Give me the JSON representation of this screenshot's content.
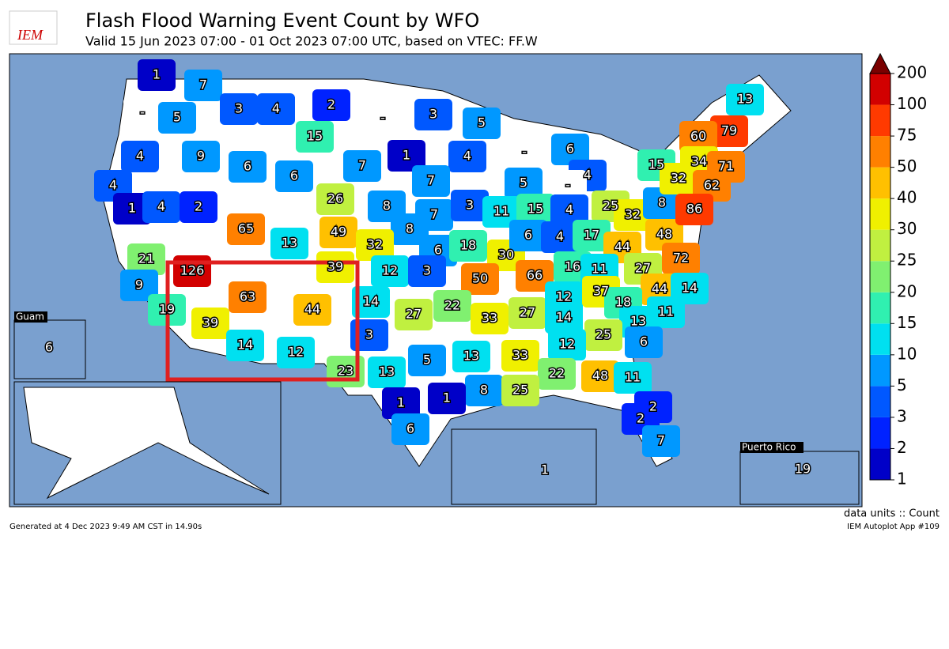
{
  "header": {
    "logo": "IEM",
    "title": "Flash Flood Warning Event Count by WFO",
    "subtitle": "Valid 15 Jun 2023 07:00 - 01 Oct 2023 07:00 UTC, based on VTEC: FF.W"
  },
  "map": {
    "counts": [
      1,
      7,
      3,
      4,
      2,
      {
        "value": null,
        "label": "-"
      },
      5,
      15,
      3,
      5,
      {
        "value": null,
        "label": "-"
      },
      4,
      9,
      6,
      1,
      4,
      6,
      {
        "value": null,
        "label": "-"
      },
      7,
      6,
      7,
      5,
      4,
      {
        "value": null,
        "label": "-"
      },
      4,
      1,
      4,
      2,
      26,
      8,
      7,
      3,
      11,
      15,
      4,
      25,
      32,
      8,
      65,
      49,
      8,
      13,
      32,
      6,
      18,
      30,
      6,
      4,
      17,
      44,
      48,
      21,
      39,
      12,
      3,
      50,
      66,
      16,
      11,
      27,
      72,
      126,
      63,
      44,
      14,
      9,
      19,
      27,
      22,
      33,
      27,
      12,
      37,
      44,
      14,
      18,
      39,
      14,
      12,
      3,
      13,
      11,
      14,
      25,
      6,
      12,
      13,
      33,
      23,
      13,
      5,
      22,
      48,
      11,
      8,
      25,
      1,
      1,
      2,
      2,
      6,
      7,
      1,
      13,
      79,
      60,
      34,
      71,
      15,
      32,
      62,
      86,
      6,
      19
    ],
    "insets": {
      "guam": "Guam",
      "puerto_rico": "Puerto Rico"
    }
  },
  "colorbar": {
    "levels": [
      1,
      2,
      3,
      5,
      10,
      15,
      20,
      25,
      30,
      40,
      50,
      75,
      100,
      200
    ],
    "colors": [
      "#0000c8",
      "#0022ff",
      "#0058ff",
      "#0098ff",
      "#00e0f0",
      "#30f0b0",
      "#80f070",
      "#c0f040",
      "#f0f000",
      "#ffc000",
      "#ff8000",
      "#ff3a00",
      "#d20000"
    ],
    "over_color": "#7a0000",
    "units": "data units :: Count"
  },
  "footer": {
    "generated": "Generated at 4 Dec 2023 9:49 AM CST in 14.90s",
    "app": "IEM Autoplot App #109"
  }
}
